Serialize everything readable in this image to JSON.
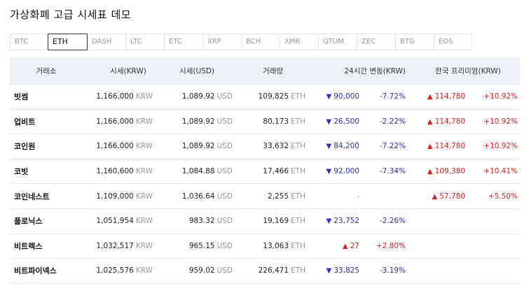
{
  "page": {
    "title": "가상화폐 고급 시세표 데모"
  },
  "tabs": [
    "BTC",
    "ETH",
    "DASH",
    "LTC",
    "ETC",
    "XRP",
    "BCH",
    "XMR",
    "QTUM",
    "ZEC",
    "BTG",
    "EOS"
  ],
  "active_tab": "ETH",
  "table": {
    "headers": {
      "exchange": "거래소",
      "price_krw": "시세(KRW)",
      "price_usd": "시세(USD)",
      "volume": "거래량",
      "change24h": "24시간 변동(KRW)",
      "premium": "한국 프리미엄(KRW)"
    },
    "units": {
      "krw": "KRW",
      "usd": "USD",
      "eth": "ETH"
    },
    "rows": [
      {
        "exchange": "빗썸",
        "price_krw": "1,166,000",
        "price_usd": "1,089.92",
        "volume": "109,825",
        "change": "90,000",
        "change_dir": "down",
        "change_pct": "-7.72%",
        "premium": "114,780",
        "premium_dir": "up",
        "premium_pct": "+10.92%"
      },
      {
        "exchange": "업비트",
        "price_krw": "1,166,000",
        "price_usd": "1,089.92",
        "volume": "80,173",
        "change": "26,500",
        "change_dir": "down",
        "change_pct": "-2.22%",
        "premium": "114,780",
        "premium_dir": "up",
        "premium_pct": "+10.92%"
      },
      {
        "exchange": "코인원",
        "price_krw": "1,166,000",
        "price_usd": "1,089.92",
        "volume": "33,632",
        "change": "84,200",
        "change_dir": "down",
        "change_pct": "-7.22%",
        "premium": "114,780",
        "premium_dir": "up",
        "premium_pct": "+10.92%"
      },
      {
        "exchange": "코빗",
        "price_krw": "1,160,600",
        "price_usd": "1,084.88",
        "volume": "17,466",
        "change": "92,000",
        "change_dir": "down",
        "change_pct": "-7.34%",
        "premium": "109,380",
        "premium_dir": "up",
        "premium_pct": "+10.41%"
      },
      {
        "exchange": "코인네스트",
        "price_krw": "1,109,000",
        "price_usd": "1,036.64",
        "volume": "2,255",
        "change": "-",
        "change_dir": "none",
        "change_pct": "",
        "premium": "57,780",
        "premium_dir": "up",
        "premium_pct": "+5.50%"
      },
      {
        "exchange": "폴로닉스",
        "price_krw": "1,051,954",
        "price_usd": "983.32",
        "volume": "19,169",
        "change": "23,752",
        "change_dir": "down",
        "change_pct": "-2.26%",
        "premium": "",
        "premium_dir": "none",
        "premium_pct": ""
      },
      {
        "exchange": "비트렉스",
        "price_krw": "1,032,517",
        "price_usd": "965.15",
        "volume": "13,063",
        "change": "27",
        "change_dir": "up",
        "change_pct": "+2.80%",
        "premium": "",
        "premium_dir": "none",
        "premium_pct": ""
      },
      {
        "exchange": "비트파이넥스",
        "price_krw": "1,025,576",
        "price_usd": "959.02",
        "volume": "226,471",
        "change": "33,825",
        "change_dir": "down",
        "change_pct": "-3.19%",
        "premium": "",
        "premium_dir": "none",
        "premium_pct": ""
      }
    ]
  },
  "icons": {
    "down": "triangle-down-icon",
    "up": "triangle-up-icon"
  },
  "colors": {
    "down": "#2f2fb6",
    "up": "#d32626",
    "header_bg": "#eef1f6"
  }
}
